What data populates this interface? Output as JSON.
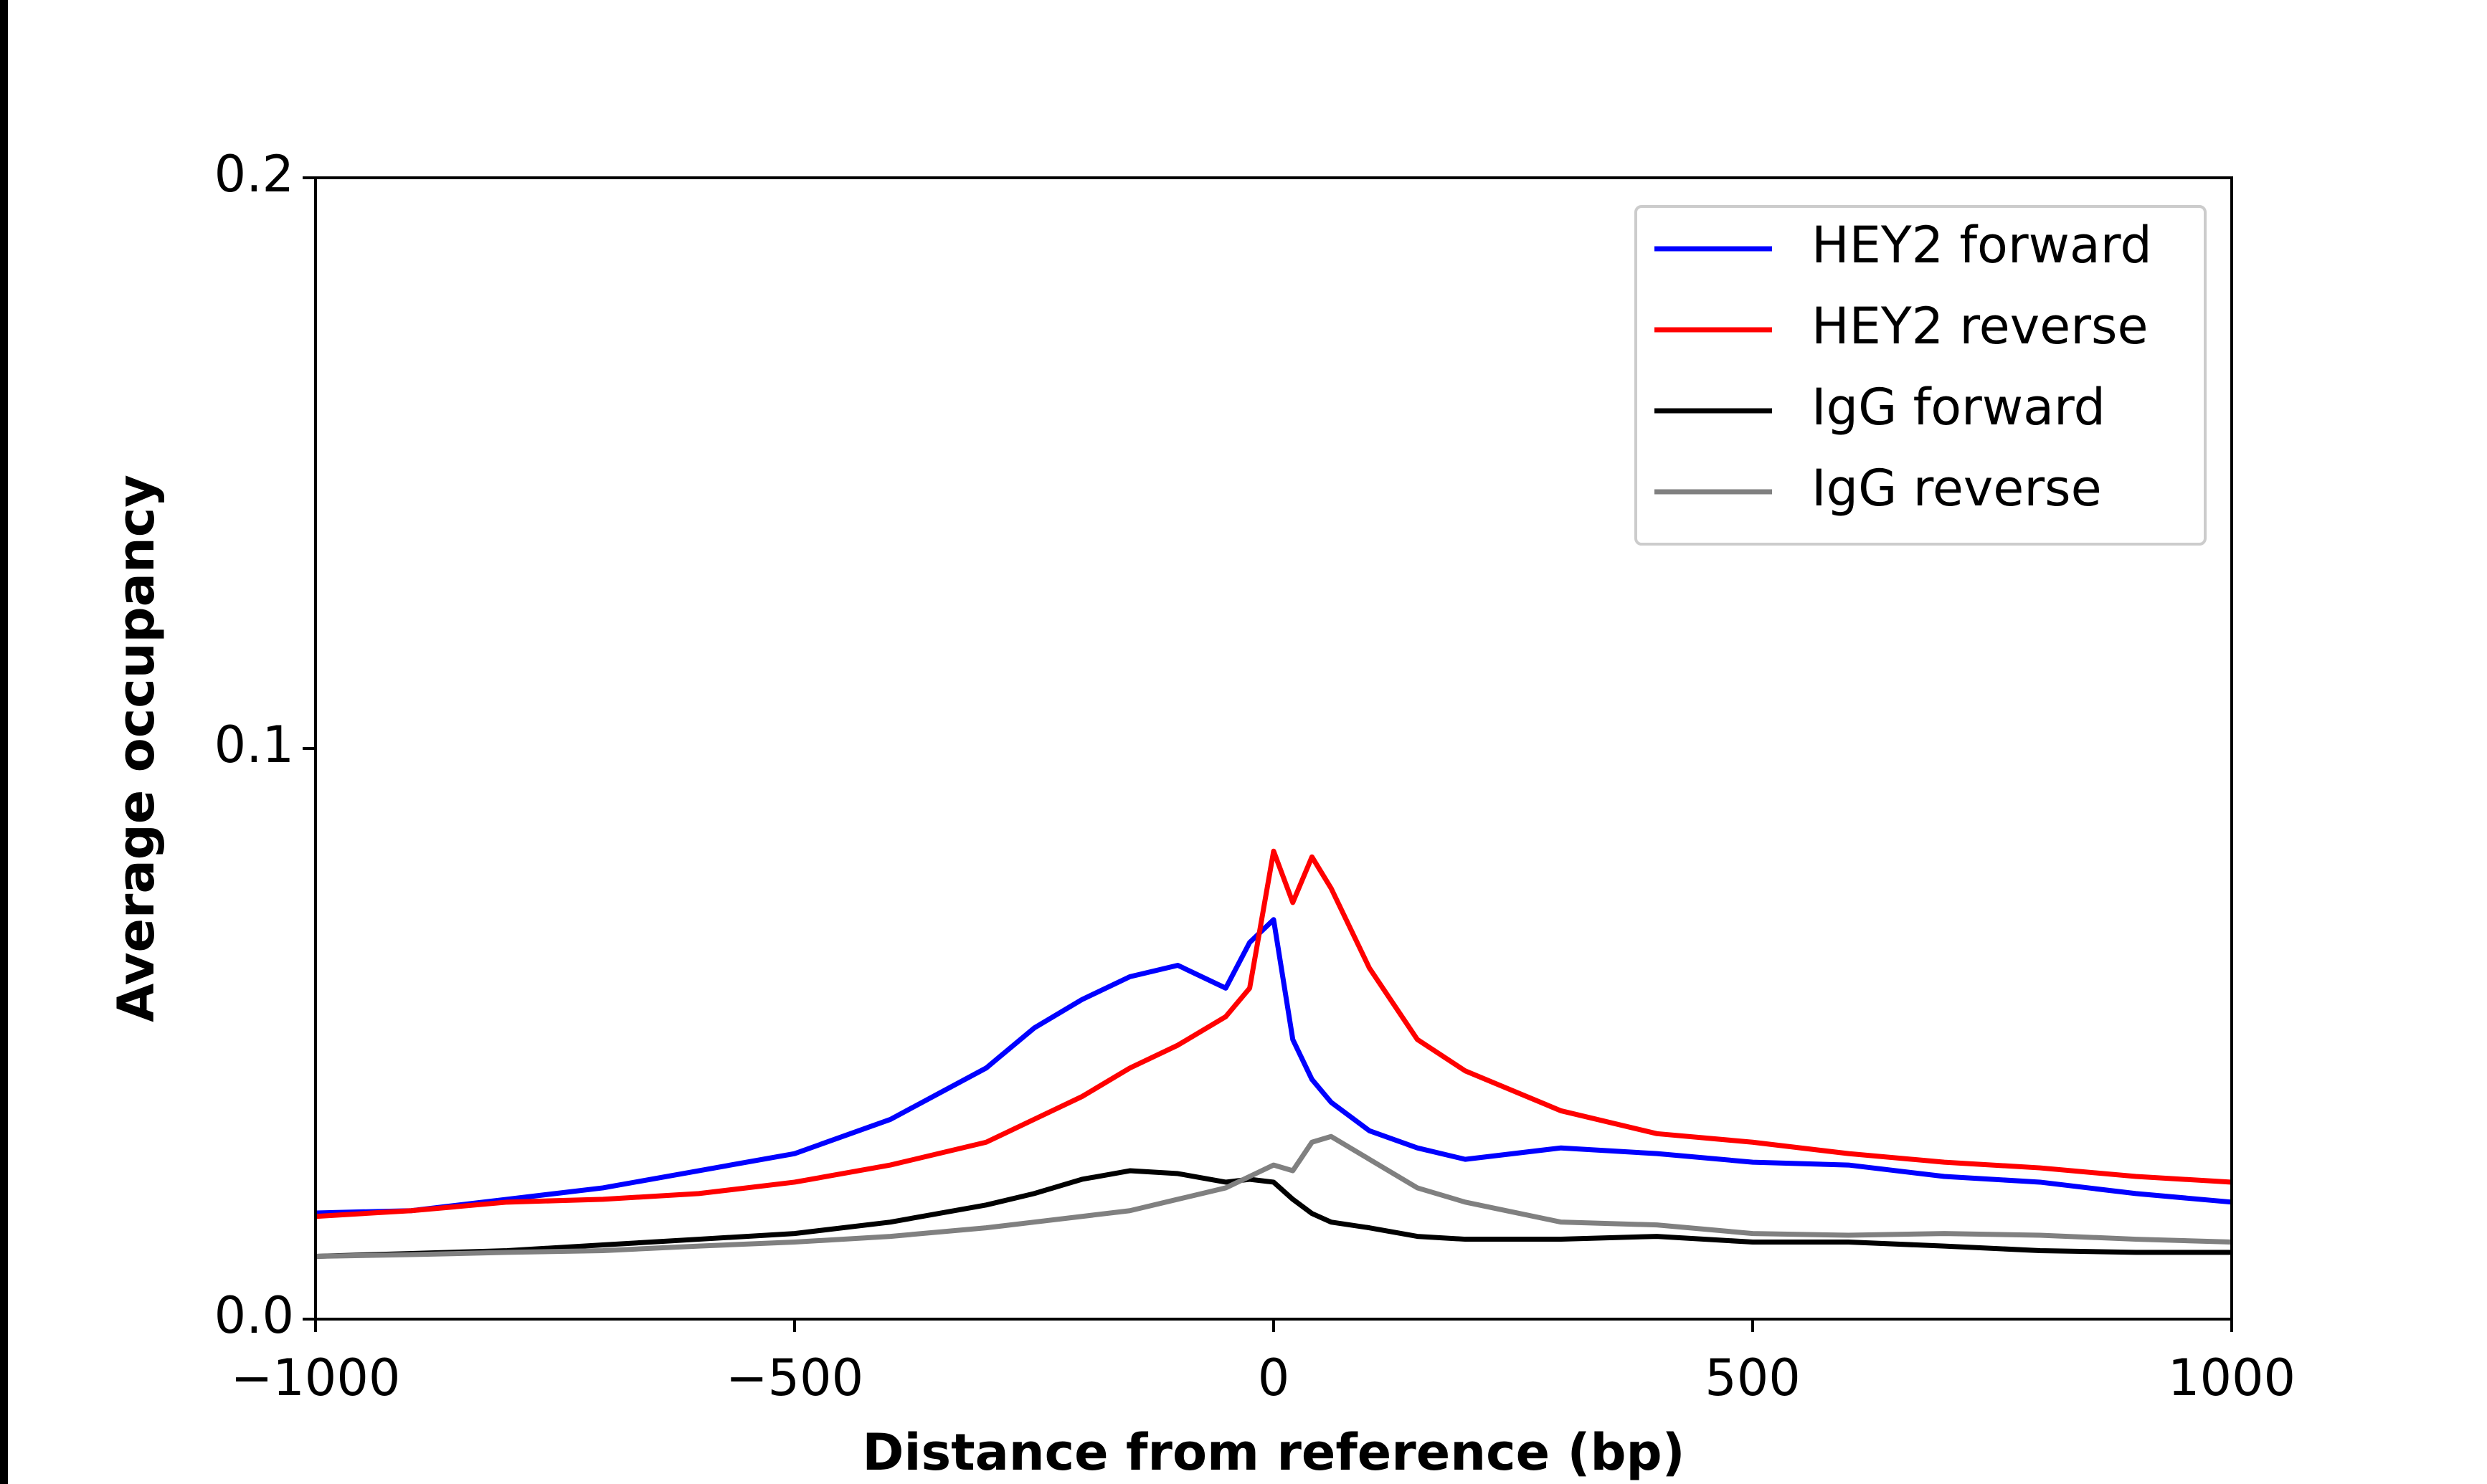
{
  "chart_data": {
    "type": "line",
    "xlabel": "Distance from reference (bp)",
    "ylabel": "Average occupancy",
    "x": [
      -1000,
      -900,
      -800,
      -700,
      -600,
      -500,
      -400,
      -300,
      -250,
      -200,
      -150,
      -100,
      -50,
      -25,
      0,
      20,
      40,
      60,
      100,
      150,
      200,
      300,
      400,
      500,
      600,
      700,
      800,
      900,
      1000
    ],
    "series": [
      {
        "name": "HEY2 forward",
        "color": "#0000ff",
        "values": [
          0.0186,
          0.019,
          0.021,
          0.023,
          0.026,
          0.029,
          0.035,
          0.044,
          0.051,
          0.056,
          0.06,
          0.062,
          0.058,
          0.066,
          0.07,
          0.049,
          0.042,
          0.038,
          0.033,
          0.03,
          0.028,
          0.03,
          0.029,
          0.0275,
          0.027,
          0.025,
          0.024,
          0.022,
          0.0205
        ]
      },
      {
        "name": "HEY2 reverse",
        "color": "#ff0000",
        "values": [
          0.018,
          0.019,
          0.0205,
          0.021,
          0.022,
          0.024,
          0.027,
          0.031,
          0.035,
          0.039,
          0.044,
          0.048,
          0.053,
          0.058,
          0.082,
          0.073,
          0.081,
          0.0755,
          0.0615,
          0.049,
          0.0435,
          0.0365,
          0.0325,
          0.031,
          0.029,
          0.0275,
          0.0265,
          0.025,
          0.024
        ]
      },
      {
        "name": "IgG forward",
        "color": "#000000",
        "values": [
          0.011,
          0.0115,
          0.012,
          0.013,
          0.014,
          0.015,
          0.017,
          0.02,
          0.022,
          0.0245,
          0.026,
          0.0255,
          0.024,
          0.0245,
          0.024,
          0.021,
          0.0185,
          0.017,
          0.016,
          0.0145,
          0.014,
          0.014,
          0.0145,
          0.0135,
          0.0135,
          0.0128,
          0.012,
          0.0117,
          0.0117
        ]
      },
      {
        "name": "IgG reverse",
        "color": "#808080",
        "values": [
          0.011,
          0.0113,
          0.0117,
          0.012,
          0.0128,
          0.0135,
          0.0145,
          0.016,
          0.017,
          0.018,
          0.019,
          0.021,
          0.023,
          0.025,
          0.027,
          0.026,
          0.031,
          0.032,
          0.028,
          0.023,
          0.0205,
          0.017,
          0.0165,
          0.015,
          0.0147,
          0.015,
          0.0147,
          0.014,
          0.0135
        ]
      }
    ],
    "xlim": [
      -1000,
      1000
    ],
    "xticks": [
      {
        "value": -1000,
        "label": "−1000"
      },
      {
        "value": -500,
        "label": "−500"
      },
      0,
      500,
      1000
    ],
    "ylim": [
      0,
      0.2
    ],
    "yticks": [
      {
        "value": 0,
        "label": "0.0"
      },
      0.1,
      0.2
    ],
    "grid": false,
    "legend": "upper right"
  }
}
